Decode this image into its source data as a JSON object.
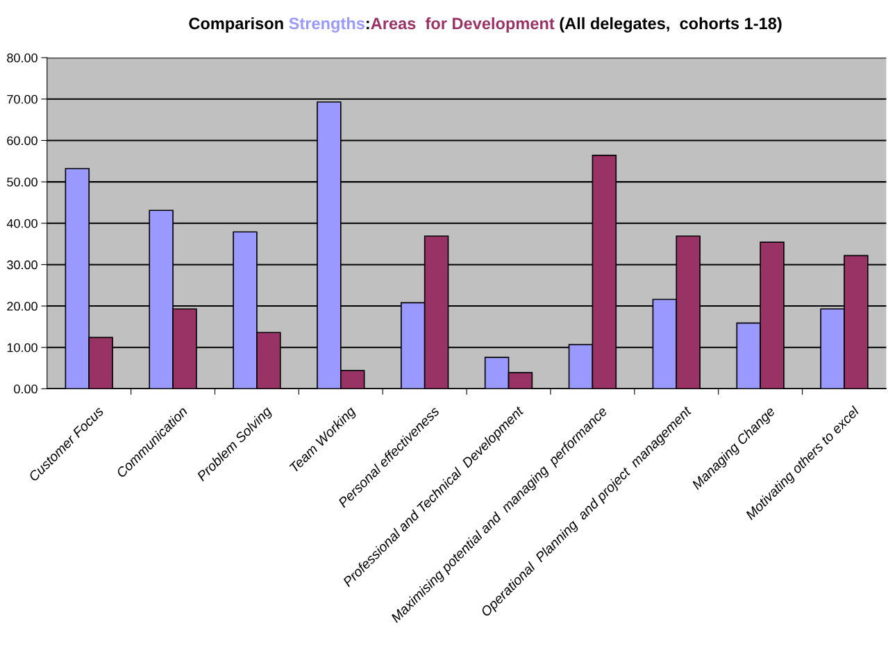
{
  "chart_data": {
    "type": "bar",
    "title": "Comparison",
    "subtitle": "(All delegates,  cohorts 1-18)",
    "categories": [
      "Customer Focus",
      "Communication",
      "Problem Solving",
      "Team Working",
      "Personal effectiveness",
      "Professional and Technical  Development",
      "Maximising potential and  managing  performance",
      "Operational  Planning  and project  management",
      "Managing Change",
      "Motivating others to excel"
    ],
    "series": [
      {
        "name": "Strengths",
        "color": "#9999ff",
        "values": [
          53.2,
          43.1,
          37.9,
          69.3,
          20.8,
          7.6,
          10.7,
          21.6,
          15.9,
          19.3
        ]
      },
      {
        "name": "Areas  for Development",
        "color": "#993366",
        "values": [
          12.4,
          19.3,
          13.6,
          4.4,
          36.9,
          3.9,
          56.4,
          36.9,
          35.4,
          32.2
        ]
      }
    ],
    "ylim": [
      0,
      80
    ],
    "yticks": [
      {
        "value": 0,
        "label": "0.00"
      },
      {
        "value": 10,
        "label": "10.00"
      },
      {
        "value": 20,
        "label": "20.00"
      },
      {
        "value": 30,
        "label": "30.00"
      },
      {
        "value": 40,
        "label": "40.00"
      },
      {
        "value": 50,
        "label": "50.00"
      },
      {
        "value": 60,
        "label": "60.00"
      },
      {
        "value": 70,
        "label": "70.00"
      },
      {
        "value": 80,
        "label": "80.00"
      }
    ],
    "annotations": [
      ":"
    ],
    "grid": "y",
    "legend": false
  }
}
